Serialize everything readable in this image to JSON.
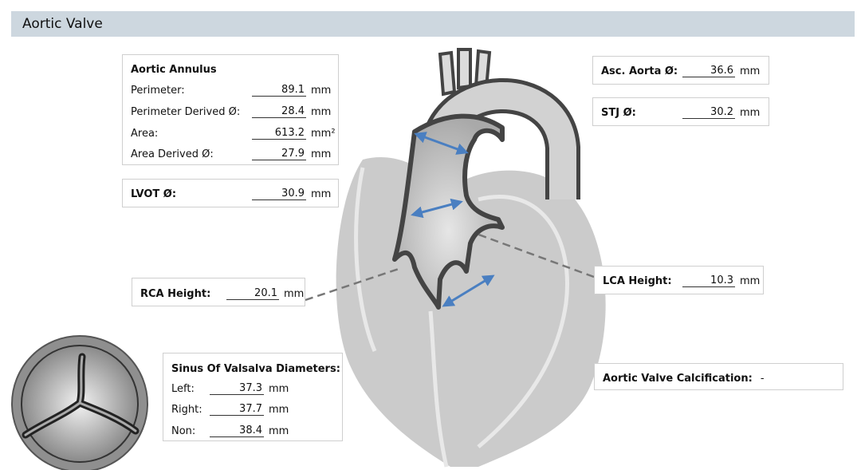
{
  "header": {
    "title": "Aortic Valve"
  },
  "aortic_annulus": {
    "title": "Aortic Annulus",
    "rows": [
      {
        "label": "Perimeter:",
        "value": 89.1,
        "unit": "mm"
      },
      {
        "label": "Perimeter Derived Ø:",
        "value": 28.4,
        "unit": "mm"
      },
      {
        "label": "Area:",
        "value": 613.2,
        "unit": "mm²"
      },
      {
        "label": "Area Derived Ø:",
        "value": 27.9,
        "unit": "mm"
      }
    ]
  },
  "lvot": {
    "label": "LVOT Ø:",
    "value": 30.9,
    "unit": "mm"
  },
  "asc_aorta": {
    "label": "Asc. Aorta Ø:",
    "value": 36.6,
    "unit": "mm"
  },
  "stj": {
    "label": "STJ Ø:",
    "value": 30.2,
    "unit": "mm"
  },
  "rca_height": {
    "label": "RCA Height:",
    "value": 20.1,
    "unit": "mm"
  },
  "lca_height": {
    "label": "LCA Height:",
    "value": 10.3,
    "unit": "mm"
  },
  "sinus_of_valsalva": {
    "title": "Sinus Of Valsalva Diameters:",
    "rows": [
      {
        "label": "Left:",
        "value": 37.3,
        "unit": "mm"
      },
      {
        "label": "Right:",
        "value": 37.7,
        "unit": "mm"
      },
      {
        "label": "Non:",
        "value": 38.4,
        "unit": "mm"
      }
    ]
  },
  "calcification": {
    "label": "Aortic Valve Calcification:",
    "value": "-"
  }
}
